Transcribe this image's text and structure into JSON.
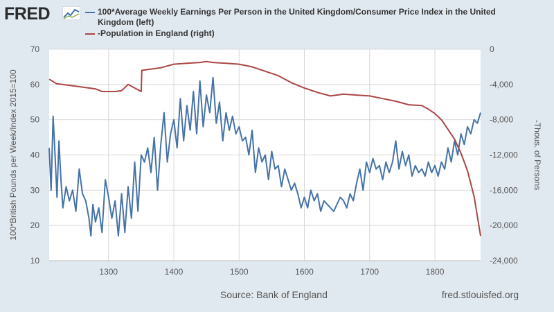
{
  "header": {
    "logo_text": "FRED",
    "logo_icon": "chart-trend-icon"
  },
  "footer": {
    "source": "Source: Bank of England",
    "site": "fred.stlouisfed.org"
  },
  "colors": {
    "background": "#e1e9f0",
    "plot_background": "#ffffff",
    "series_left": "#4572a7",
    "series_right": "#aa4643",
    "grid": "#d8d8d8"
  },
  "chart_data": {
    "type": "line",
    "title": "",
    "xlabel": "",
    "ylabel_left": "100*British Pounds per Week/Index 2015=100",
    "ylabel_right": "-Thous. of Persons",
    "xlim": [
      1209,
      1870
    ],
    "ylim_left": [
      10,
      70
    ],
    "ylim_right": [
      -24000,
      0
    ],
    "x_ticks": [
      1300,
      1400,
      1500,
      1600,
      1700,
      1800
    ],
    "y_ticks_left": [
      10,
      20,
      30,
      40,
      50,
      60,
      70
    ],
    "y_ticks_right": [
      -24000,
      -20000,
      -16000,
      -12000,
      -8000,
      -4000,
      0
    ],
    "y_tick_labels_right": [
      "-24,000",
      "-20,000",
      "-16,000",
      "-12,000",
      "-8,000",
      "-4,000",
      "0"
    ],
    "grid": true,
    "legend_position": "top",
    "series": [
      {
        "name": "100*Average Weekly Earnings Per Person in the United Kingdom/Consumer Price Index in the United Kingdom (left)",
        "axis": "left",
        "x": [
          1209,
          1212,
          1215,
          1218,
          1221,
          1224,
          1227,
          1230,
          1235,
          1240,
          1245,
          1250,
          1255,
          1260,
          1265,
          1270,
          1273,
          1276,
          1280,
          1285,
          1290,
          1295,
          1300,
          1305,
          1310,
          1315,
          1320,
          1325,
          1330,
          1335,
          1340,
          1345,
          1350,
          1355,
          1360,
          1365,
          1370,
          1375,
          1380,
          1385,
          1390,
          1395,
          1400,
          1405,
          1410,
          1415,
          1420,
          1425,
          1430,
          1435,
          1440,
          1445,
          1450,
          1455,
          1460,
          1465,
          1470,
          1475,
          1480,
          1485,
          1490,
          1495,
          1500,
          1505,
          1510,
          1515,
          1520,
          1525,
          1530,
          1535,
          1540,
          1545,
          1550,
          1555,
          1560,
          1565,
          1570,
          1575,
          1580,
          1585,
          1590,
          1595,
          1600,
          1605,
          1610,
          1615,
          1620,
          1625,
          1630,
          1635,
          1640,
          1645,
          1650,
          1655,
          1660,
          1665,
          1670,
          1675,
          1680,
          1685,
          1690,
          1695,
          1700,
          1705,
          1710,
          1715,
          1720,
          1725,
          1730,
          1735,
          1740,
          1745,
          1750,
          1755,
          1760,
          1765,
          1770,
          1775,
          1780,
          1785,
          1790,
          1795,
          1800,
          1805,
          1810,
          1815,
          1820,
          1825,
          1830,
          1835,
          1840,
          1845,
          1850,
          1855,
          1860,
          1865,
          1870
        ],
        "values": [
          42,
          30,
          51,
          40,
          28,
          44,
          33,
          25,
          31,
          27,
          30,
          24,
          36,
          29,
          27,
          22,
          17,
          26,
          21,
          25,
          18,
          33,
          28,
          22,
          27,
          17,
          29,
          18,
          31,
          22,
          38,
          24,
          40,
          38,
          42,
          35,
          45,
          30,
          43,
          52,
          38,
          46,
          50,
          42,
          56,
          44,
          54,
          47,
          58,
          46,
          61,
          48,
          57,
          52,
          62,
          49,
          55,
          44,
          52,
          47,
          51,
          46,
          48,
          44,
          45,
          40,
          47,
          35,
          42,
          38,
          40,
          33,
          41,
          36,
          37,
          31,
          36,
          33,
          30,
          32,
          29,
          25,
          28,
          25,
          30,
          27,
          29,
          24,
          27,
          26,
          25,
          24,
          26,
          28,
          27,
          25,
          29,
          27,
          32,
          36,
          30,
          38,
          35,
          39,
          36,
          37,
          33,
          38,
          35,
          38,
          44,
          36,
          41,
          37,
          40,
          34,
          37,
          35,
          36,
          34,
          38,
          35,
          37,
          34,
          38,
          36,
          42,
          38,
          44,
          40,
          46,
          43,
          48,
          46,
          50,
          49,
          52
        ]
      },
      {
        "name": "-Population in England (right)",
        "axis": "right",
        "x": [
          1209,
          1220,
          1240,
          1260,
          1280,
          1290,
          1310,
          1320,
          1330,
          1350,
          1351,
          1360,
          1380,
          1400,
          1420,
          1440,
          1450,
          1460,
          1480,
          1500,
          1520,
          1540,
          1560,
          1580,
          1600,
          1620,
          1640,
          1660,
          1680,
          1700,
          1720,
          1740,
          1760,
          1780,
          1790,
          1800,
          1810,
          1820,
          1830,
          1840,
          1850,
          1860,
          1870
        ],
        "values": [
          -3400,
          -3900,
          -4100,
          -4300,
          -4500,
          -4800,
          -4800,
          -4700,
          -4000,
          -4800,
          -2400,
          -2300,
          -2100,
          -1700,
          -1600,
          -1500,
          -1400,
          -1500,
          -1600,
          -1700,
          -2000,
          -2500,
          -3000,
          -3800,
          -4400,
          -4900,
          -5300,
          -5100,
          -5200,
          -5300,
          -5600,
          -5900,
          -6300,
          -6400,
          -6800,
          -7300,
          -8000,
          -9100,
          -10200,
          -11800,
          -13800,
          -16700,
          -21200
        ]
      }
    ]
  }
}
